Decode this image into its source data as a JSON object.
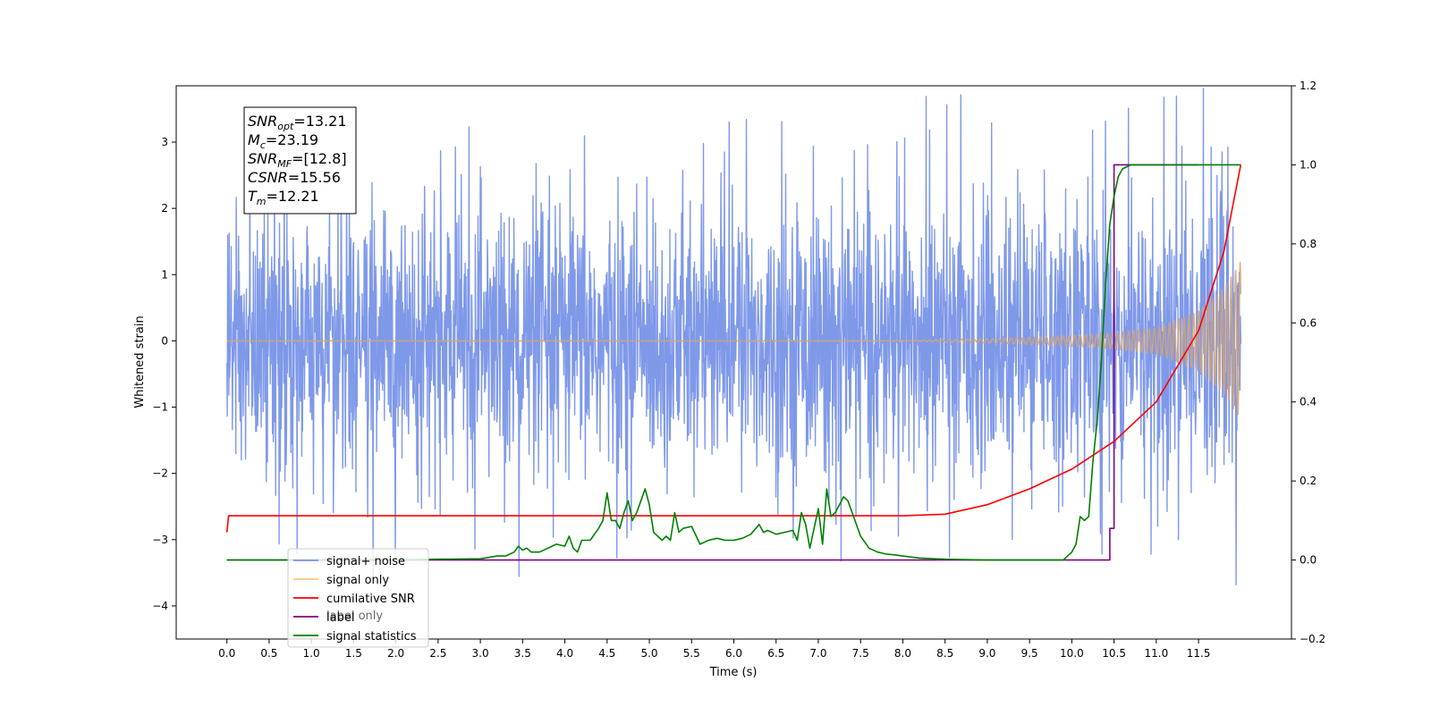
{
  "chart_data": {
    "type": "line",
    "xlabel": "Time (s)",
    "ylabel": "Whitened strain",
    "xlim": [
      -0.6,
      12.6
    ],
    "ylim": [
      -4.5,
      3.85
    ],
    "y2lim": [
      -0.2,
      1.2
    ],
    "x_ticks": [
      0.0,
      0.5,
      1.0,
      1.5,
      2.0,
      2.5,
      3.0,
      3.5,
      4.0,
      4.5,
      5.0,
      5.5,
      6.0,
      6.5,
      7.0,
      7.5,
      8.0,
      8.5,
      9.0,
      9.5,
      10.0,
      10.5,
      11.0,
      11.5
    ],
    "x_tick_labels": [
      "0.0",
      "0.5",
      "1.0",
      "1.5",
      "2.0",
      "2.5",
      "3.0",
      "3.5",
      "4.0",
      "4.5",
      "5.0",
      "5.5",
      "6.0",
      "6.5",
      "7.0",
      "7.5",
      "8.0",
      "8.5",
      "9.0",
      "9.5",
      "10.0",
      "10.5",
      "11.0",
      "11.5"
    ],
    "y_ticks": [
      -4,
      -3,
      -2,
      -1,
      0,
      1,
      2,
      3
    ],
    "y_tick_labels": [
      "−4",
      "−3",
      "−2",
      "−1",
      "0",
      "1",
      "2",
      "3"
    ],
    "y2_ticks": [
      -0.2,
      0.0,
      0.2,
      0.4,
      0.6,
      0.8,
      1.0,
      1.2
    ],
    "y2_tick_labels": [
      "−0.2",
      "0.0",
      "0.2",
      "0.4",
      "0.6",
      "0.8",
      "1.0",
      "1.2"
    ],
    "grid": false,
    "legend_position": "lower-left",
    "legend": [
      {
        "label": "signal+ noise",
        "color": "#7893e8"
      },
      {
        "label": "signal only",
        "color": "#ffc67a"
      },
      {
        "label": "cumilative SNR",
        "color": "#ff0000"
      },
      {
        "label": "label",
        "color": "#800080"
      },
      {
        "label": "signal statistics",
        "color": "#008000"
      }
    ],
    "legend_hidden_label": "label only",
    "annotation": [
      {
        "main": "SNR",
        "sub": "opt",
        "rest": "=13.21"
      },
      {
        "main": "M",
        "sub": "c",
        "rest": "=23.19"
      },
      {
        "main": "SNR",
        "sub": "MF",
        "rest": "=[12.8]"
      },
      {
        "main": "CSNR",
        "sub": "",
        "rest": "=15.56"
      },
      {
        "main": "T",
        "sub": "m",
        "rest": "=12.21"
      }
    ],
    "series": [
      {
        "name": "signal+ noise",
        "axis": "left",
        "color": "#7893e8",
        "x_range": [
          0.0,
          12.0
        ],
        "amplitude_envelope": {
          "x": [
            0.0,
            6.0,
            10.0,
            11.0,
            11.6,
            12.0
          ],
          "y": [
            1.7,
            1.7,
            1.72,
            1.78,
            1.85,
            1.9
          ]
        }
      },
      {
        "name": "signal only",
        "axis": "left",
        "color": "#d4a373",
        "x_range": [
          0.0,
          12.0
        ],
        "amplitude_envelope": {
          "x": [
            0.0,
            7.8,
            9.0,
            10.0,
            10.5,
            11.0,
            11.5,
            11.8,
            12.0
          ],
          "y": [
            0.0,
            0.0,
            0.03,
            0.08,
            0.12,
            0.2,
            0.45,
            0.8,
            1.2
          ]
        }
      },
      {
        "name": "cumilative SNR",
        "axis": "right",
        "color": "#ff0000",
        "x": [
          0.0,
          0.02,
          8.0,
          8.5,
          9.0,
          9.5,
          10.0,
          10.5,
          11.0,
          11.5,
          11.8,
          12.0
        ],
        "y": [
          0.07,
          0.112,
          0.112,
          0.116,
          0.14,
          0.18,
          0.23,
          0.3,
          0.4,
          0.58,
          0.78,
          1.0
        ]
      },
      {
        "name": "label",
        "axis": "right",
        "color": "#800080",
        "x": [
          0.0,
          10.45,
          10.45,
          10.5,
          10.5,
          11.5
        ],
        "y": [
          0.0,
          0.0,
          0.08,
          0.08,
          1.0,
          1.0
        ]
      },
      {
        "name": "signal statistics",
        "axis": "right",
        "color": "#008000",
        "x": [
          0.0,
          2.0,
          2.5,
          3.0,
          3.2,
          3.3,
          3.4,
          3.45,
          3.5,
          3.55,
          3.6,
          3.7,
          3.8,
          3.9,
          4.0,
          4.05,
          4.1,
          4.15,
          4.2,
          4.3,
          4.4,
          4.45,
          4.5,
          4.55,
          4.6,
          4.65,
          4.7,
          4.75,
          4.8,
          4.85,
          4.9,
          4.95,
          5.0,
          5.05,
          5.1,
          5.15,
          5.2,
          5.25,
          5.3,
          5.35,
          5.4,
          5.5,
          5.6,
          5.7,
          5.8,
          5.9,
          6.0,
          6.1,
          6.2,
          6.3,
          6.35,
          6.4,
          6.5,
          6.6,
          6.7,
          6.75,
          6.8,
          6.85,
          6.9,
          6.95,
          7.0,
          7.05,
          7.1,
          7.15,
          7.2,
          7.25,
          7.3,
          7.35,
          7.4,
          7.5,
          7.6,
          7.7,
          7.8,
          7.9,
          8.0,
          8.2,
          8.5,
          9.0,
          9.5,
          9.9,
          10.0,
          10.05,
          10.1,
          10.15,
          10.2,
          10.25,
          10.3,
          10.35,
          10.4,
          10.45,
          10.5,
          10.55,
          10.6,
          10.7,
          10.8,
          10.9,
          11.0,
          12.0
        ],
        "y": [
          0.0,
          0.0,
          0.002,
          0.003,
          0.01,
          0.01,
          0.02,
          0.035,
          0.025,
          0.03,
          0.02,
          0.02,
          0.03,
          0.04,
          0.035,
          0.06,
          0.03,
          0.02,
          0.05,
          0.05,
          0.08,
          0.1,
          0.17,
          0.1,
          0.1,
          0.08,
          0.12,
          0.15,
          0.1,
          0.12,
          0.15,
          0.18,
          0.14,
          0.07,
          0.06,
          0.05,
          0.06,
          0.05,
          0.12,
          0.07,
          0.08,
          0.085,
          0.04,
          0.05,
          0.055,
          0.05,
          0.05,
          0.055,
          0.065,
          0.09,
          0.07,
          0.075,
          0.065,
          0.07,
          0.075,
          0.05,
          0.12,
          0.09,
          0.03,
          0.08,
          0.13,
          0.04,
          0.18,
          0.11,
          0.12,
          0.14,
          0.16,
          0.15,
          0.12,
          0.06,
          0.03,
          0.02,
          0.015,
          0.013,
          0.01,
          0.005,
          0.002,
          0.0,
          0.0,
          0.0,
          0.02,
          0.04,
          0.11,
          0.1,
          0.11,
          0.25,
          0.35,
          0.5,
          0.7,
          0.85,
          0.92,
          0.97,
          0.99,
          1.0,
          1.0,
          1.0,
          1.0,
          1.0
        ]
      }
    ]
  }
}
